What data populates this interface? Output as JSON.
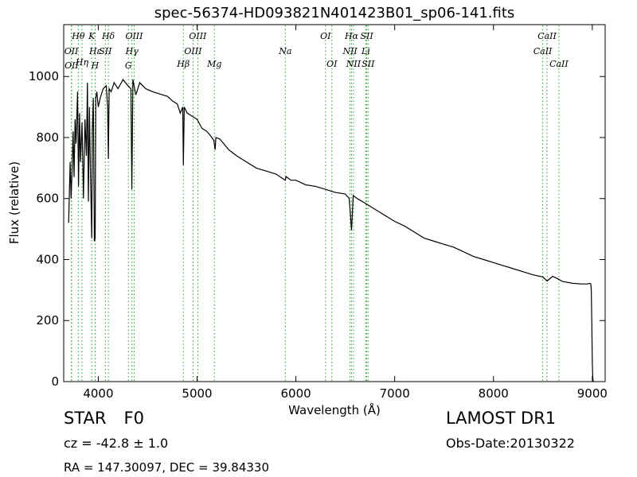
{
  "chart_data": {
    "type": "line",
    "title": "spec-56374-HD093821N401423B01_sp06-141.fits",
    "xlabel": "Wavelength (Å)",
    "ylabel": "Flux (relative)",
    "xlim": [
      3650,
      9130
    ],
    "ylim": [
      0,
      1170
    ],
    "xticks": [
      4000,
      5000,
      6000,
      7000,
      8000,
      9000
    ],
    "yticks": [
      0,
      200,
      400,
      600,
      800,
      1000
    ],
    "grid": false,
    "line_color": "#000000",
    "marker_color": "#2ca02c",
    "series": [
      {
        "x": [
          3700,
          3715,
          3725,
          3735,
          3745,
          3755,
          3765,
          3775,
          3790,
          3800,
          3810,
          3820,
          3835,
          3850,
          3865,
          3880,
          3890,
          3900,
          3910,
          3920,
          3934,
          3940,
          3950,
          3960,
          3968,
          3975,
          3985,
          4000,
          4020,
          4050,
          4080,
          4095,
          4102,
          4110,
          4130,
          4160,
          4200,
          4250,
          4300,
          4330,
          4340,
          4350,
          4380,
          4420,
          4480,
          4550,
          4600,
          4650,
          4700,
          4750,
          4800,
          4830,
          4855,
          4861,
          4870,
          4900,
          4950,
          5000,
          5050,
          5100,
          5150,
          5170,
          5183,
          5190,
          5230,
          5270,
          5320,
          5400,
          5500,
          5600,
          5700,
          5800,
          5893,
          5900,
          5950,
          6000,
          6100,
          6200,
          6300,
          6400,
          6500,
          6540,
          6563,
          6580,
          6620,
          6700,
          6800,
          6900,
          7000,
          7100,
          7200,
          7300,
          7400,
          7500,
          7600,
          7700,
          7800,
          7900,
          8000,
          8100,
          8200,
          8300,
          8400,
          8500,
          8542,
          8600,
          8662,
          8700,
          8800,
          8900,
          8950,
          8975,
          8985,
          8990,
          8995,
          9000,
          9005,
          9010,
          9015
        ],
        "y": [
          520,
          720,
          600,
          690,
          820,
          670,
          860,
          780,
          950,
          640,
          880,
          720,
          850,
          600,
          860,
          740,
          980,
          590,
          900,
          700,
          470,
          820,
          930,
          460,
          470,
          930,
          950,
          900,
          930,
          960,
          970,
          900,
          730,
          960,
          950,
          980,
          960,
          990,
          970,
          960,
          630,
          990,
          940,
          980,
          960,
          950,
          945,
          940,
          935,
          920,
          910,
          880,
          900,
          710,
          900,
          880,
          870,
          860,
          830,
          820,
          800,
          790,
          760,
          800,
          795,
          780,
          760,
          740,
          720,
          700,
          690,
          680,
          660,
          672,
          660,
          660,
          645,
          640,
          630,
          620,
          615,
          600,
          495,
          610,
          600,
          585,
          565,
          545,
          525,
          510,
          490,
          470,
          460,
          450,
          440,
          425,
          410,
          400,
          390,
          380,
          370,
          360,
          350,
          343,
          330,
          345,
          335,
          328,
          322,
          320,
          320,
          322,
          320,
          300,
          200,
          60,
          10,
          0,
          0
        ]
      }
    ],
    "line_markers": [
      {
        "label": "Hθ",
        "x": 3798,
        "row": "top1"
      },
      {
        "label": "K",
        "x": 3934,
        "row": "top1"
      },
      {
        "label": "Hδ",
        "x": 4102,
        "row": "top1"
      },
      {
        "label": "OIII",
        "x": 4363,
        "row": "top1"
      },
      {
        "label": "OIII",
        "x": 5007,
        "row": "top1"
      },
      {
        "label": "OI",
        "x": 6300,
        "row": "top1"
      },
      {
        "label": "Hα",
        "x": 6563,
        "row": "top1"
      },
      {
        "label": "SII",
        "x": 6717,
        "row": "top1"
      },
      {
        "label": "CaII",
        "x": 8542,
        "row": "top1"
      },
      {
        "label": "OII",
        "x": 3727,
        "row": "top2"
      },
      {
        "label": "Hε",
        "x": 3970,
        "row": "top2"
      },
      {
        "label": "SII",
        "x": 4072,
        "row": "top2"
      },
      {
        "label": "Hγ",
        "x": 4341,
        "row": "top2"
      },
      {
        "label": "OIII",
        "x": 4959,
        "row": "top2"
      },
      {
        "label": "Na",
        "x": 5893,
        "row": "top2"
      },
      {
        "label": "NII",
        "x": 6548,
        "row": "top2"
      },
      {
        "label": "Li",
        "x": 6708,
        "row": "top2"
      },
      {
        "label": "CaII",
        "x": 8498,
        "row": "top2"
      },
      {
        "label": "Hη",
        "x": 3835,
        "row": "top3"
      },
      {
        "label": "Hβ",
        "x": 4861,
        "row": "top3"
      },
      {
        "label": "Mg",
        "x": 5175,
        "row": "top3"
      },
      {
        "label": "OI",
        "x": 6364,
        "row": "top3"
      },
      {
        "label": "NII",
        "x": 6583,
        "row": "top3"
      },
      {
        "label": "SII",
        "x": 6731,
        "row": "top3"
      },
      {
        "label": "CaII",
        "x": 8662,
        "row": "top3"
      },
      {
        "label": "OII",
        "x": 3730,
        "row": "top4"
      },
      {
        "label": "H",
        "x": 3968,
        "row": "top4"
      },
      {
        "label": "G",
        "x": 4305,
        "row": "top4"
      }
    ]
  },
  "info": {
    "class_label": "STAR",
    "subclass": "F0",
    "redshift": "cz = -42.8 ± 1.0",
    "coordinates": "RA = 147.30097, DEC = 39.84330",
    "survey": "LAMOST DR1",
    "obs_date": "Obs-Date:20130322"
  }
}
